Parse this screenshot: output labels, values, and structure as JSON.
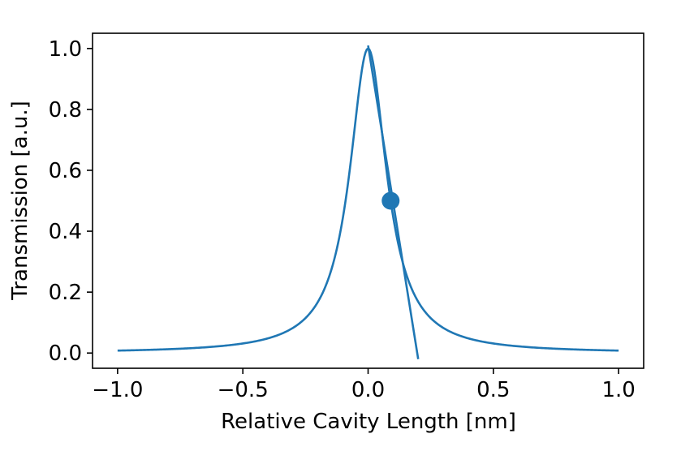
{
  "chart_data": {
    "type": "line",
    "title": "",
    "xlabel": "Relative Cavity Length [nm]",
    "ylabel": "Transmission [a.u.]",
    "xlim": [
      -1.1,
      1.1
    ],
    "ylim": [
      -0.05,
      1.05
    ],
    "x_ticks": [
      -1.0,
      -0.5,
      0.0,
      0.5,
      1.0
    ],
    "x_tick_labels": [
      "−1.0",
      "−0.5",
      "0.0",
      "0.5",
      "1.0"
    ],
    "y_ticks": [
      0.0,
      0.2,
      0.4,
      0.6,
      0.8,
      1.0
    ],
    "y_tick_labels": [
      "0.0",
      "0.2",
      "0.4",
      "0.6",
      "0.8",
      "1.0"
    ],
    "grid": false,
    "color": "#1f77b4",
    "series": [
      {
        "kind": "lorentzian",
        "center": 0.0,
        "hwhm": 0.09,
        "x_range": [
          -1.0,
          1.0
        ],
        "peak": 1.0
      },
      {
        "kind": "tangent-line",
        "x": [
          0.0,
          0.2
        ],
        "y": [
          1.01,
          -0.02
        ]
      }
    ],
    "points": [
      {
        "x": 0.09,
        "y": 0.5
      }
    ]
  }
}
